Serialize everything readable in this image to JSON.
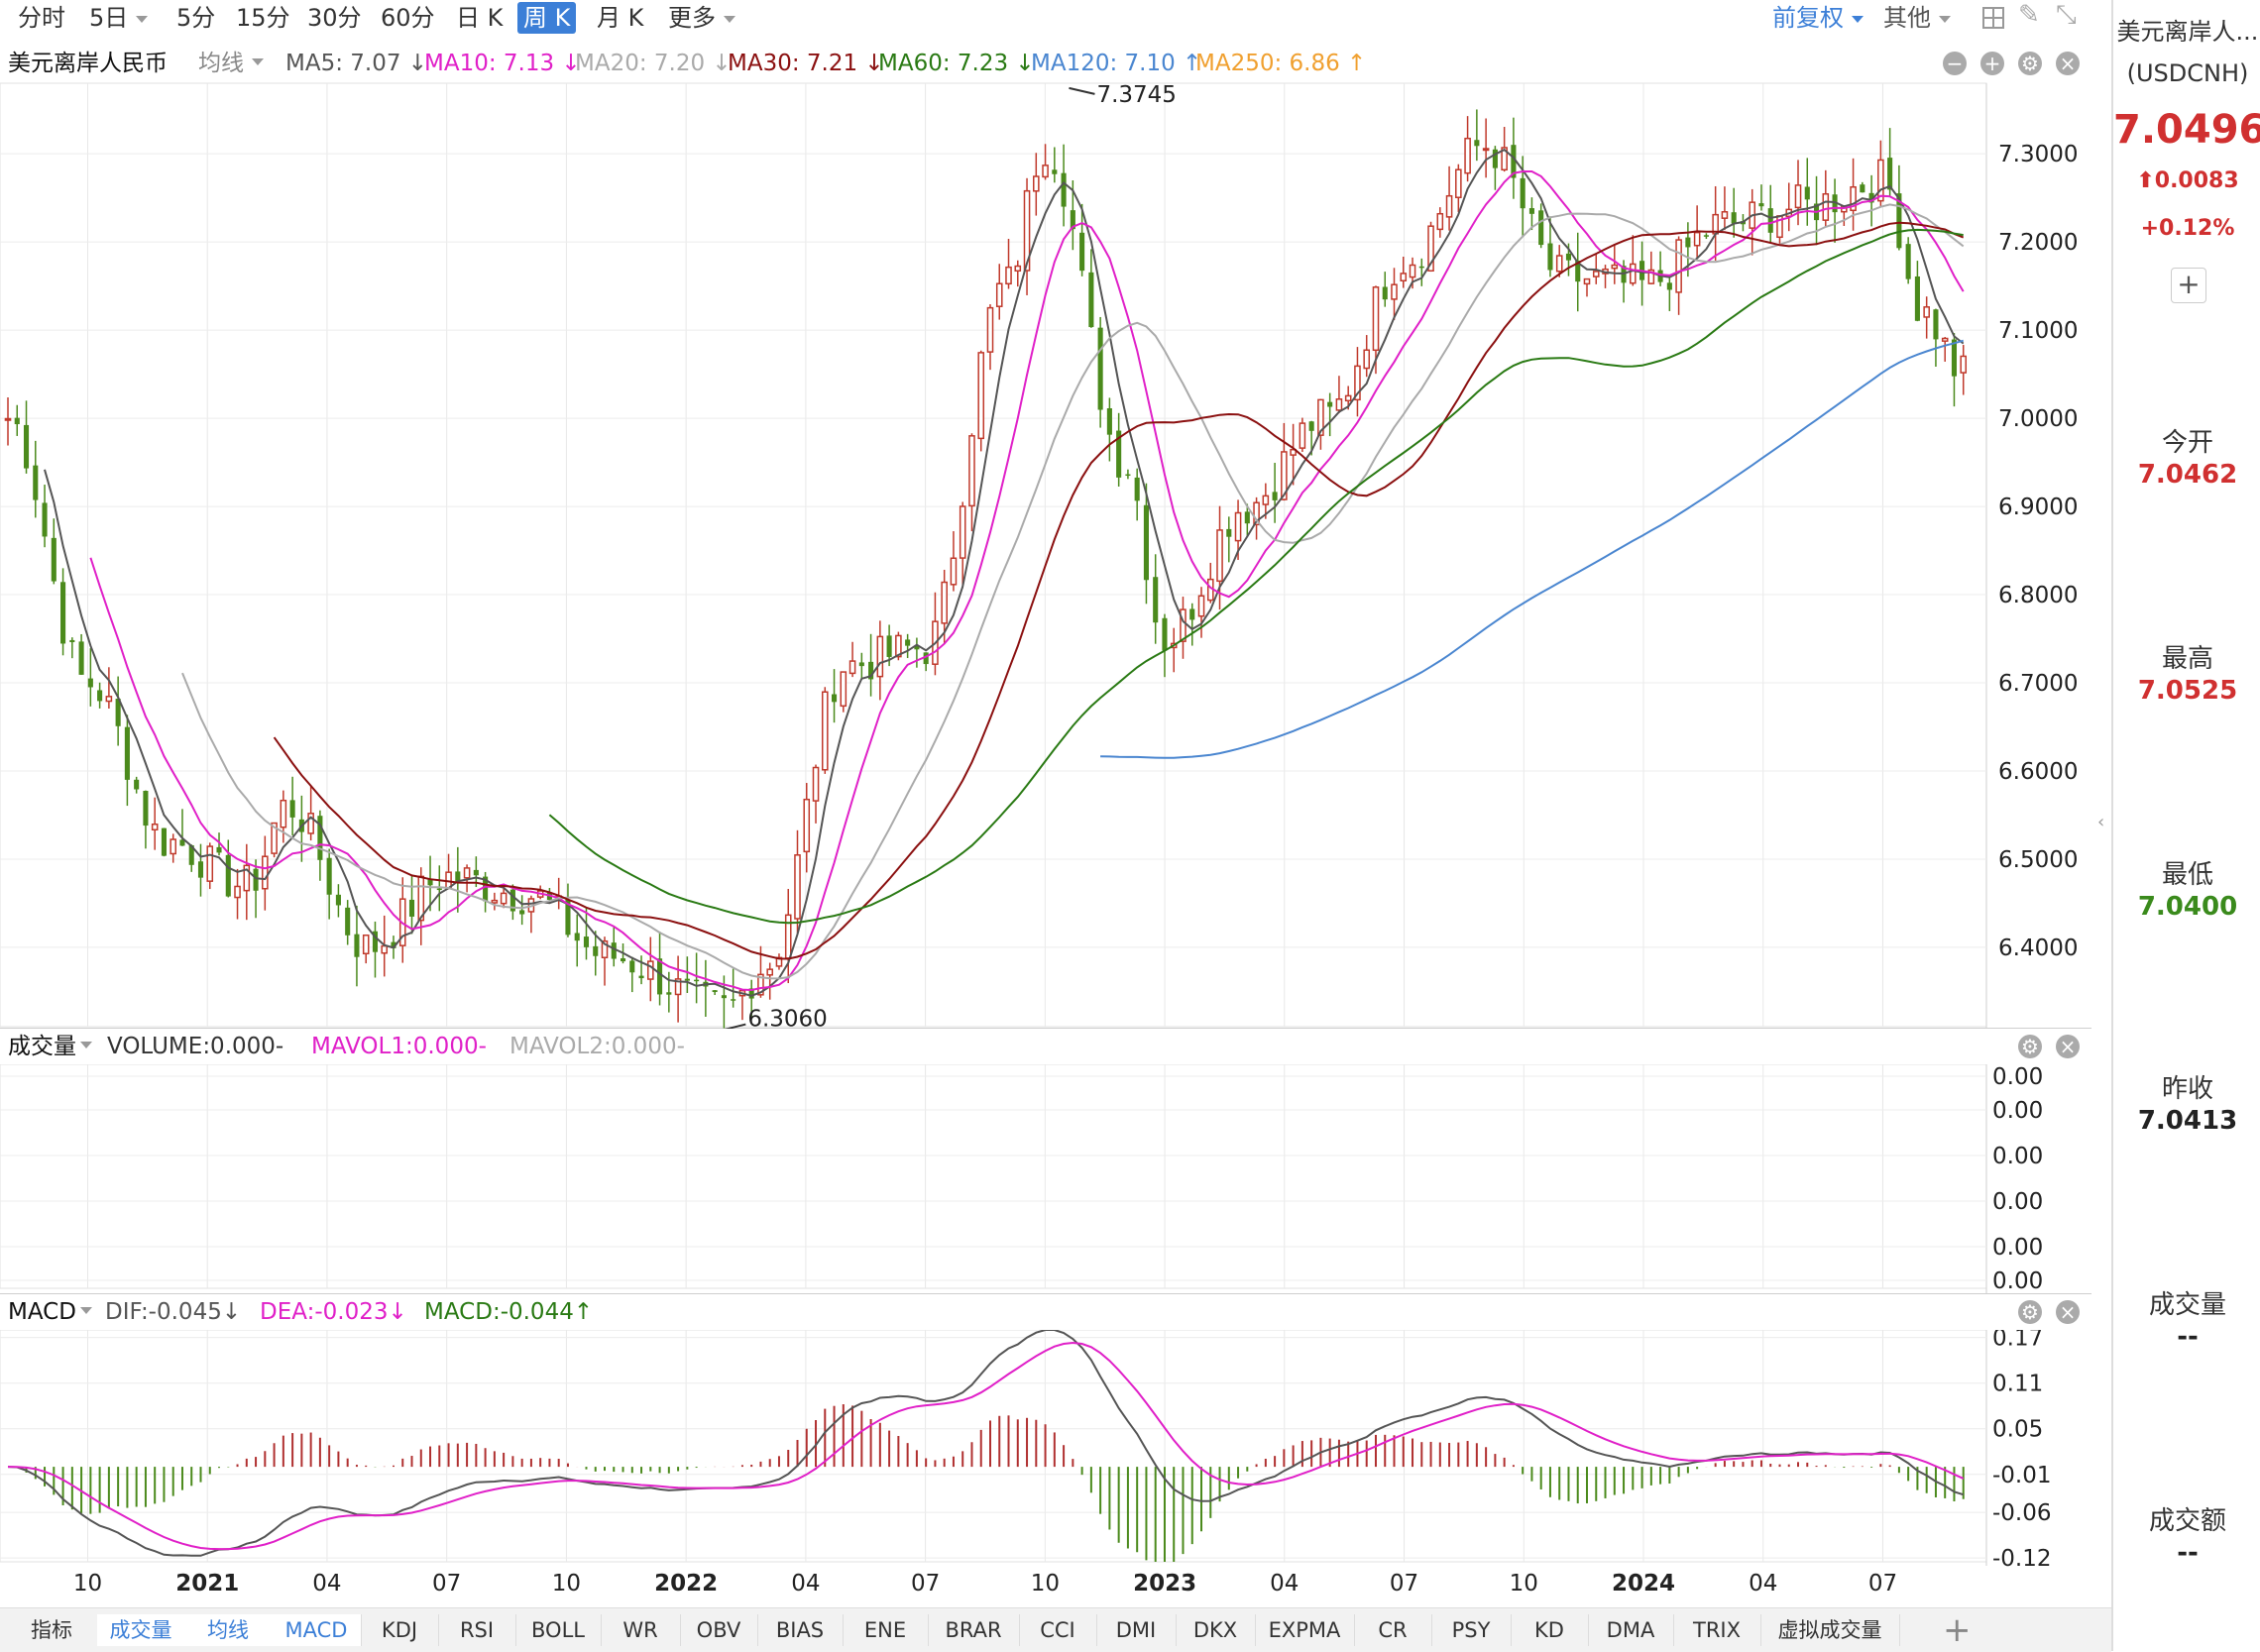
{
  "toolbar": {
    "timeframes": [
      {
        "label": "分时",
        "dropdown": false,
        "active": false
      },
      {
        "label": "5日",
        "dropdown": true,
        "active": false
      },
      {
        "label": "5分",
        "dropdown": false,
        "active": false
      },
      {
        "label": "15分",
        "dropdown": false,
        "active": false
      },
      {
        "label": "30分",
        "dropdown": false,
        "active": false
      },
      {
        "label": "60分",
        "dropdown": false,
        "active": false
      },
      {
        "label": "日 K",
        "dropdown": false,
        "active": false
      },
      {
        "label": "周 K",
        "dropdown": false,
        "active": true
      },
      {
        "label": "月 K",
        "dropdown": false,
        "active": false
      },
      {
        "label": "更多",
        "dropdown": true,
        "active": false
      }
    ],
    "adjust": "前复权",
    "other": "其他",
    "icons": [
      "grid-icon",
      "pencil-icon",
      "fullscreen-icon"
    ]
  },
  "price_pane": {
    "symbol_label": "美元离岸人民币",
    "ma_type": "均线",
    "ma_items": [
      {
        "text": "MA5: 7.07 ↓",
        "color": "#555555"
      },
      {
        "text": "MA10: 7.13 ↓",
        "color": "#e020c8"
      },
      {
        "text": "MA20: 7.20 ↓",
        "color": "#aaaaaa"
      },
      {
        "text": "MA30: 7.21 ↓",
        "color": "#8b1010"
      },
      {
        "text": "MA60: 7.23 ↓",
        "color": "#2a7a14"
      },
      {
        "text": "MA120: 7.10 ↑",
        "color": "#4a86d0"
      },
      {
        "text": "MA250: 6.86 ↑",
        "color": "#f0a030"
      }
    ],
    "high_marker": "7.3745",
    "low_marker": "6.3060",
    "price_ticks": [
      "7.3000",
      "7.2000",
      "7.1000",
      "7.0000",
      "6.9000",
      "6.8000",
      "6.7000",
      "6.6000",
      "6.5000",
      "6.4000"
    ]
  },
  "volume_pane": {
    "title": "成交量",
    "items": [
      {
        "text": "VOLUME:0.000-",
        "color": "#333333"
      },
      {
        "text": "MAVOL1:0.000-",
        "color": "#e020c8"
      },
      {
        "text": "MAVOL2:0.000-",
        "color": "#aaaaaa"
      }
    ],
    "ticks": [
      "0.00",
      "0.00",
      "0.00",
      "0.00",
      "0.00",
      "0.00"
    ]
  },
  "macd_pane": {
    "title": "MACD",
    "items": [
      {
        "text": "DIF:-0.045↓",
        "color": "#555555"
      },
      {
        "text": "DEA:-0.023↓",
        "color": "#e020c8"
      },
      {
        "text": "MACD:-0.044↑",
        "color": "#2a7a14"
      }
    ],
    "ticks": [
      "0.17",
      "0.11",
      "0.05",
      "-0.01",
      "-0.06",
      "-0.12"
    ]
  },
  "x_axis": [
    "10",
    "2021",
    "04",
    "07",
    "10",
    "2022",
    "04",
    "07",
    "10",
    "2023",
    "04",
    "07",
    "10",
    "2024",
    "04",
    "07"
  ],
  "sidebar": {
    "name": "美元离岸人...",
    "code": "(USDCNH)",
    "price": "7.0496",
    "change": "0.0083",
    "change_pct": "+0.12%",
    "open_label": "今开",
    "open": "7.0462",
    "high_label": "最高",
    "high": "7.0525",
    "low_label": "最低",
    "low": "7.0400",
    "prev_label": "昨收",
    "prev": "7.0413",
    "vol_label": "成交量",
    "vol": "--",
    "amt_label": "成交额",
    "amt": "--",
    "up_color": "#d03030",
    "down_color": "#3a8a1c"
  },
  "bottom_tabs": [
    "指标",
    "成交量",
    "均线",
    "MACD",
    "KDJ",
    "RSI",
    "BOLL",
    "WR",
    "OBV",
    "BIAS",
    "ENE",
    "BRAR",
    "CCI",
    "DMI",
    "DKX",
    "EXPMA",
    "CR",
    "PSY",
    "KD",
    "DMA",
    "TRIX",
    "虚拟成交量"
  ],
  "chart_data": {
    "type": "candlestick",
    "frequency": "weekly",
    "ylim": [
      6.31,
      7.38
    ],
    "high": 7.3745,
    "low": 6.306,
    "keypoints": [
      {
        "x": "2020-08",
        "y": 7.0
      },
      {
        "x": "2020-10",
        "y": 6.7
      },
      {
        "x": "2020-12",
        "y": 6.52
      },
      {
        "x": "2021-02",
        "y": 6.47
      },
      {
        "x": "2021-03",
        "y": 6.56
      },
      {
        "x": "2021-05",
        "y": 6.4
      },
      {
        "x": "2021-07",
        "y": 6.48
      },
      {
        "x": "2021-09",
        "y": 6.46
      },
      {
        "x": "2021-11",
        "y": 6.39
      },
      {
        "x": "2022-02",
        "y": 6.33
      },
      {
        "x": "2022-03",
        "y": 6.38
      },
      {
        "x": "2022-05",
        "y": 6.72
      },
      {
        "x": "2022-07",
        "y": 6.74
      },
      {
        "x": "2022-09",
        "y": 7.15
      },
      {
        "x": "2022-10",
        "y": 7.31
      },
      {
        "x": "2022-12",
        "y": 6.95
      },
      {
        "x": "2023-01",
        "y": 6.75
      },
      {
        "x": "2023-03",
        "y": 6.9
      },
      {
        "x": "2023-05",
        "y": 7.0
      },
      {
        "x": "2023-07",
        "y": 7.18
      },
      {
        "x": "2023-09",
        "y": 7.31
      },
      {
        "x": "2023-11",
        "y": 7.16
      },
      {
        "x": "2024-01",
        "y": 7.15
      },
      {
        "x": "2024-03",
        "y": 7.22
      },
      {
        "x": "2024-05",
        "y": 7.24
      },
      {
        "x": "2024-07",
        "y": 7.27
      },
      {
        "x": "2024-08",
        "y": 7.12
      },
      {
        "x": "2024-09",
        "y": 7.05
      }
    ]
  }
}
